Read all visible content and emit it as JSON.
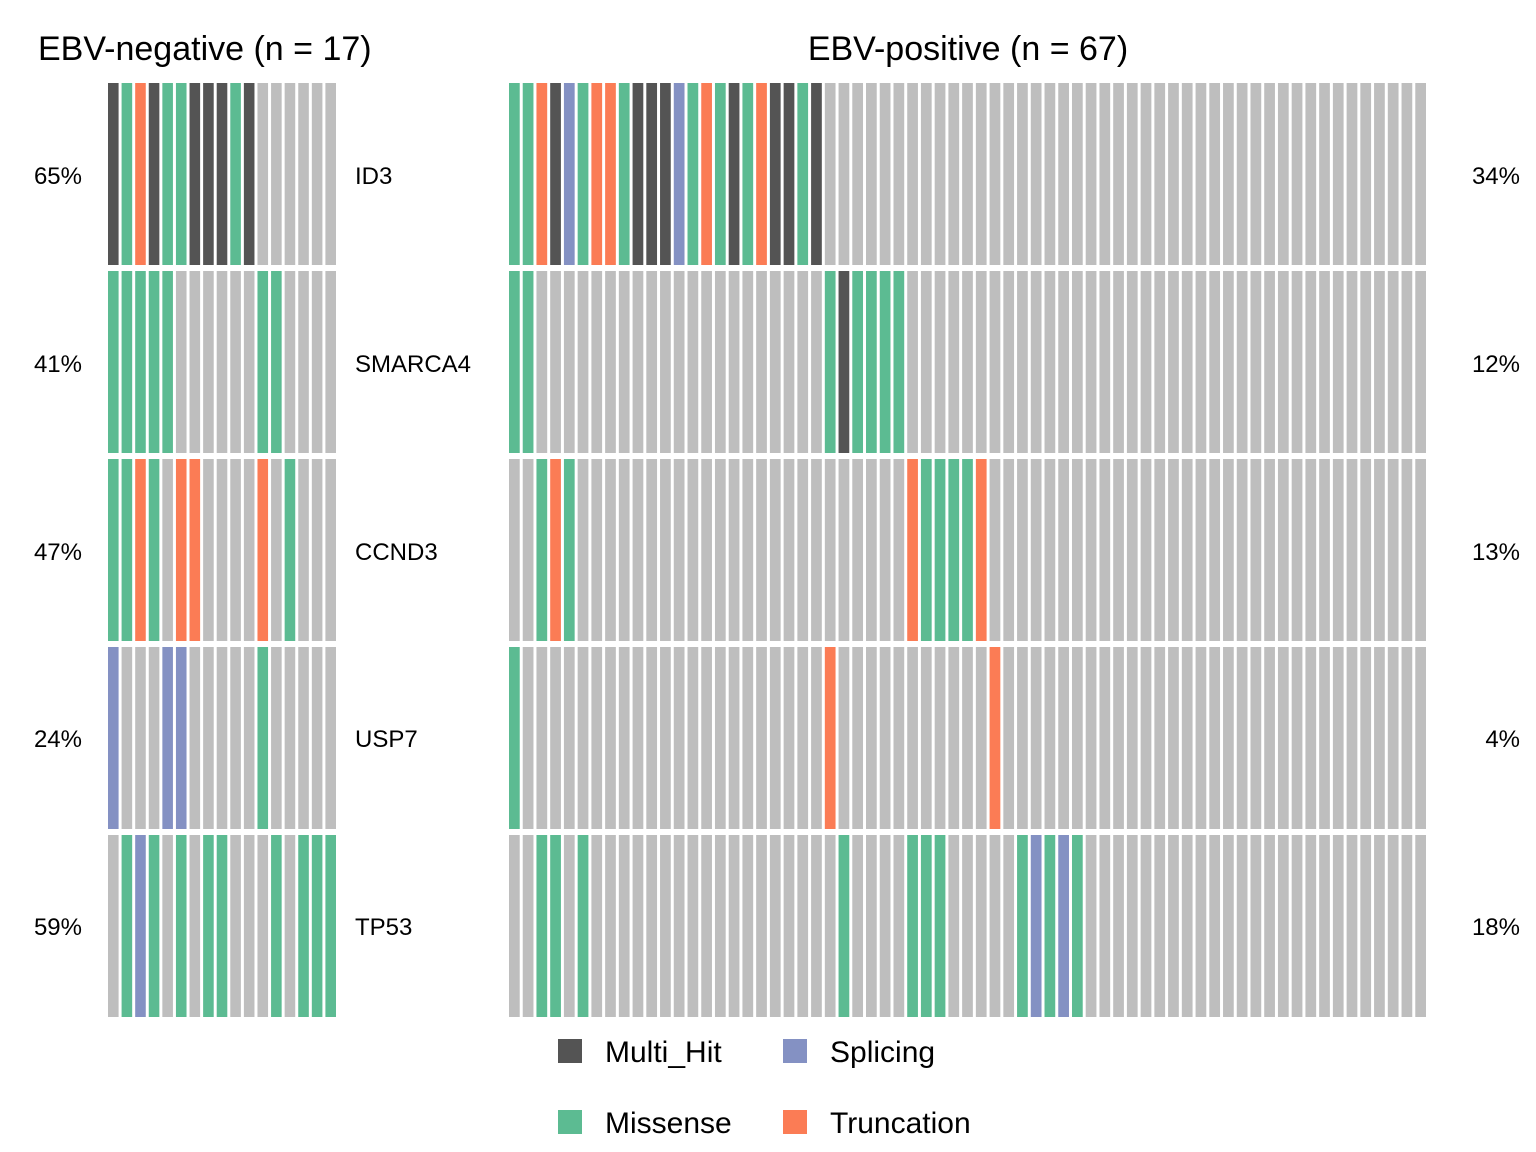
{
  "chart_data": {
    "type": "heatmap",
    "subtype": "oncoprint",
    "genes": [
      "ID3",
      "SMARCA4",
      "CCND3",
      "USP7",
      "TP53"
    ],
    "colors": {
      "none": "#bebebe",
      "Multi_Hit": "#545454",
      "Missense": "#5cbb92",
      "Splicing": "#8491c3",
      "Truncation": "#fb7c55"
    },
    "legend": {
      "placement": "bottom",
      "items": [
        {
          "key": "Multi_Hit",
          "label": "Multi_Hit"
        },
        {
          "key": "Splicing",
          "label": "Splicing"
        },
        {
          "key": "Missense",
          "label": "Missense"
        },
        {
          "key": "Truncation",
          "label": "Truncation"
        }
      ]
    },
    "panels": [
      {
        "id": "ebv-negative",
        "title": "EBV-negative (n = 17)",
        "n": 17,
        "percentages": [
          "65%",
          "41%",
          "47%",
          "24%",
          "59%"
        ],
        "percent_side": "left",
        "matrix": [
          [
            "Multi_Hit",
            "Missense",
            "Truncation",
            "Multi_Hit",
            "Missense",
            "Missense",
            "Multi_Hit",
            "Multi_Hit",
            "Multi_Hit",
            "Missense",
            "Multi_Hit",
            "none",
            "none",
            "none",
            "none",
            "none",
            "none"
          ],
          [
            "Missense",
            "Missense",
            "Missense",
            "Missense",
            "Missense",
            "none",
            "none",
            "none",
            "none",
            "none",
            "none",
            "Missense",
            "Missense",
            "none",
            "none",
            "none",
            "none"
          ],
          [
            "Missense",
            "Missense",
            "Truncation",
            "Missense",
            "none",
            "Truncation",
            "Truncation",
            "none",
            "none",
            "none",
            "none",
            "Truncation",
            "none",
            "Missense",
            "none",
            "none",
            "none"
          ],
          [
            "Splicing",
            "none",
            "none",
            "none",
            "Splicing",
            "Splicing",
            "none",
            "none",
            "none",
            "none",
            "none",
            "Missense",
            "none",
            "none",
            "none",
            "none",
            "none"
          ],
          [
            "none",
            "Missense",
            "Splicing",
            "Missense",
            "none",
            "Missense",
            "none",
            "Missense",
            "Missense",
            "none",
            "none",
            "none",
            "Missense",
            "none",
            "Missense",
            "Missense",
            "Missense"
          ]
        ]
      },
      {
        "id": "ebv-positive",
        "title": "EBV-positive (n = 67)",
        "n": 67,
        "percentages": [
          "34%",
          "12%",
          "13%",
          "4%",
          "18%"
        ],
        "percent_side": "right",
        "matrix": [
          [
            "Missense",
            "Missense",
            "Truncation",
            "Multi_Hit",
            "Splicing",
            "Missense",
            "Truncation",
            "Truncation",
            "Missense",
            "Multi_Hit",
            "Multi_Hit",
            "Multi_Hit",
            "Splicing",
            "Missense",
            "Truncation",
            "Missense",
            "Multi_Hit",
            "Missense",
            "Truncation",
            "Multi_Hit",
            "Multi_Hit",
            "Missense",
            "Multi_Hit",
            "none",
            "none",
            "none",
            "none",
            "none",
            "none",
            "none",
            "none",
            "none",
            "none",
            "none",
            "none",
            "none",
            "none",
            "none",
            "none",
            "none",
            "none",
            "none",
            "none",
            "none",
            "none",
            "none",
            "none",
            "none",
            "none",
            "none",
            "none",
            "none",
            "none",
            "none",
            "none",
            "none",
            "none",
            "none",
            "none",
            "none",
            "none",
            "none",
            "none",
            "none",
            "none",
            "none",
            "none"
          ],
          [
            "Missense",
            "Missense",
            "none",
            "none",
            "none",
            "none",
            "none",
            "none",
            "none",
            "none",
            "none",
            "none",
            "none",
            "none",
            "none",
            "none",
            "none",
            "none",
            "none",
            "none",
            "none",
            "none",
            "none",
            "Missense",
            "Multi_Hit",
            "Missense",
            "Missense",
            "Missense",
            "Missense",
            "none",
            "none",
            "none",
            "none",
            "none",
            "none",
            "none",
            "none",
            "none",
            "none",
            "none",
            "none",
            "none",
            "none",
            "none",
            "none",
            "none",
            "none",
            "none",
            "none",
            "none",
            "none",
            "none",
            "none",
            "none",
            "none",
            "none",
            "none",
            "none",
            "none",
            "none",
            "none",
            "none",
            "none",
            "none",
            "none",
            "none",
            "none"
          ],
          [
            "none",
            "none",
            "Missense",
            "Truncation",
            "Missense",
            "none",
            "none",
            "none",
            "none",
            "none",
            "none",
            "none",
            "none",
            "none",
            "none",
            "none",
            "none",
            "none",
            "none",
            "none",
            "none",
            "none",
            "none",
            "none",
            "none",
            "none",
            "none",
            "none",
            "none",
            "Truncation",
            "Missense",
            "Missense",
            "Missense",
            "Missense",
            "Truncation",
            "none",
            "none",
            "none",
            "none",
            "none",
            "none",
            "none",
            "none",
            "none",
            "none",
            "none",
            "none",
            "none",
            "none",
            "none",
            "none",
            "none",
            "none",
            "none",
            "none",
            "none",
            "none",
            "none",
            "none",
            "none",
            "none",
            "none",
            "none",
            "none",
            "none",
            "none",
            "none"
          ],
          [
            "Missense",
            "none",
            "none",
            "none",
            "none",
            "none",
            "none",
            "none",
            "none",
            "none",
            "none",
            "none",
            "none",
            "none",
            "none",
            "none",
            "none",
            "none",
            "none",
            "none",
            "none",
            "none",
            "none",
            "Truncation",
            "none",
            "none",
            "none",
            "none",
            "none",
            "none",
            "none",
            "none",
            "none",
            "none",
            "none",
            "Truncation",
            "none",
            "none",
            "none",
            "none",
            "none",
            "none",
            "none",
            "none",
            "none",
            "none",
            "none",
            "none",
            "none",
            "none",
            "none",
            "none",
            "none",
            "none",
            "none",
            "none",
            "none",
            "none",
            "none",
            "none",
            "none",
            "none",
            "none",
            "none",
            "none",
            "none",
            "none"
          ],
          [
            "none",
            "none",
            "Missense",
            "Missense",
            "none",
            "Missense",
            "none",
            "none",
            "none",
            "none",
            "none",
            "none",
            "none",
            "none",
            "none",
            "none",
            "none",
            "none",
            "none",
            "none",
            "none",
            "none",
            "none",
            "none",
            "Missense",
            "none",
            "none",
            "none",
            "none",
            "Missense",
            "Missense",
            "Missense",
            "none",
            "none",
            "none",
            "none",
            "none",
            "Missense",
            "Splicing",
            "Missense",
            "Splicing",
            "Missense",
            "none",
            "none",
            "none",
            "none",
            "none",
            "none",
            "none",
            "none",
            "none",
            "none",
            "none",
            "none",
            "none",
            "none",
            "none",
            "none",
            "none",
            "none",
            "none",
            "none",
            "none",
            "none",
            "none",
            "none",
            "none"
          ]
        ]
      }
    ]
  }
}
